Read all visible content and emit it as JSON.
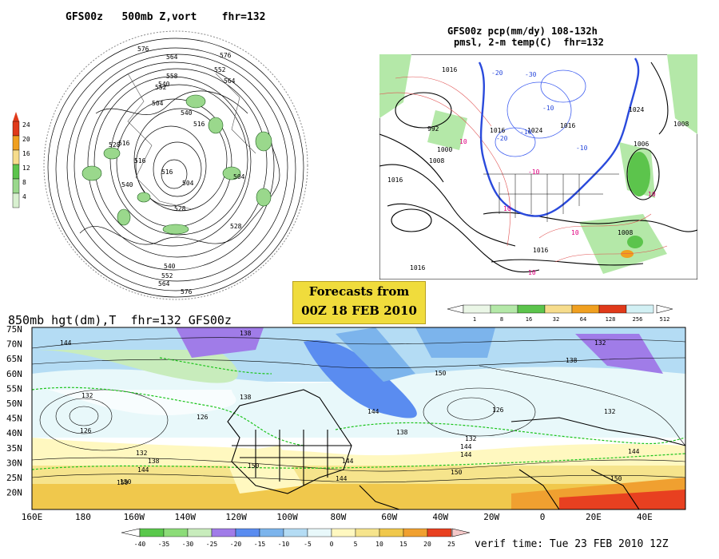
{
  "panel_nh": {
    "title": "GFS00z   500mb Z,vort    fhr=132",
    "legend_values": [
      "24",
      "20",
      "16",
      "12",
      "8",
      "4"
    ],
    "legend_colors": [
      "#e03a1a",
      "#f0a020",
      "#f6dc8c",
      "#5cc44c",
      "#9ad88c",
      "#d8f0d0"
    ],
    "contour_labels": [
      "576",
      "564",
      "576",
      "552",
      "564",
      "558",
      "552",
      "540",
      "504",
      "516",
      "528",
      "540",
      "516",
      "504",
      "516",
      "516",
      "528",
      "540",
      "504",
      "528",
      "540",
      "552",
      "564",
      "576"
    ]
  },
  "panel_na": {
    "title_line1": "GFS00z pcp(mm/dy) 108-132h",
    "title_line2": "pmsl, 2-m temp(C)  fhr=132",
    "legend_values": [
      "1",
      "8",
      "16",
      "32",
      "64",
      "128",
      "256",
      "512"
    ],
    "legend_colors": [
      "#eaf6e6",
      "#b4e8a8",
      "#5cc44c",
      "#f6dc8c",
      "#f0a020",
      "#e03a1a",
      "#d2f0f4"
    ],
    "isobar_labels": [
      "1016",
      "992",
      "1000",
      "1008",
      "1016",
      "1016",
      "1024",
      "1016",
      "1024",
      "1008",
      "1006",
      "1008",
      "1016",
      "1016"
    ],
    "temp_labels": [
      "-20",
      "-30",
      "-10",
      "-20",
      "-10",
      "-10",
      "10",
      "10",
      "10",
      "-10",
      "10",
      "10"
    ]
  },
  "forecast_box": {
    "line1": "Forecasts from",
    "line2": "00Z 18 FEB 2010"
  },
  "panel_global": {
    "title": "850mb hgt(dm),T  fhr=132 GFS00z",
    "lat_labels": [
      "75N",
      "70N",
      "65N",
      "60N",
      "55N",
      "50N",
      "45N",
      "40N",
      "35N",
      "30N",
      "25N",
      "20N"
    ],
    "lon_labels": [
      "160E",
      "180",
      "160W",
      "140W",
      "120W",
      "100W",
      "80W",
      "60W",
      "40W",
      "20W",
      "0",
      "20E",
      "40E"
    ],
    "height_labels": [
      "144",
      "132",
      "126",
      "132",
      "138",
      "144",
      "150",
      "138",
      "126",
      "138",
      "144",
      "150",
      "132",
      "138",
      "144",
      "144",
      "150",
      "150",
      "138",
      "144",
      "126",
      "132",
      "150",
      "144",
      "132",
      "144",
      "150"
    ],
    "temp_legend_values": [
      "-40",
      "-35",
      "-30",
      "-25",
      "-20",
      "-15",
      "-10",
      "-5",
      "0",
      "5",
      "10",
      "15",
      "20",
      "25"
    ],
    "temp_legend_colors": [
      "#5ac84c",
      "#8cdc78",
      "#c8ecbc",
      "#a07ce8",
      "#5a8cf0",
      "#7cb4ec",
      "#b4dcf4",
      "#e8f8fa",
      "#fff8c0",
      "#f6e48c",
      "#f0c84c",
      "#f0a030",
      "#e84020"
    ]
  },
  "verif_time": "verif time: Tue 23 FEB 2010 12Z"
}
